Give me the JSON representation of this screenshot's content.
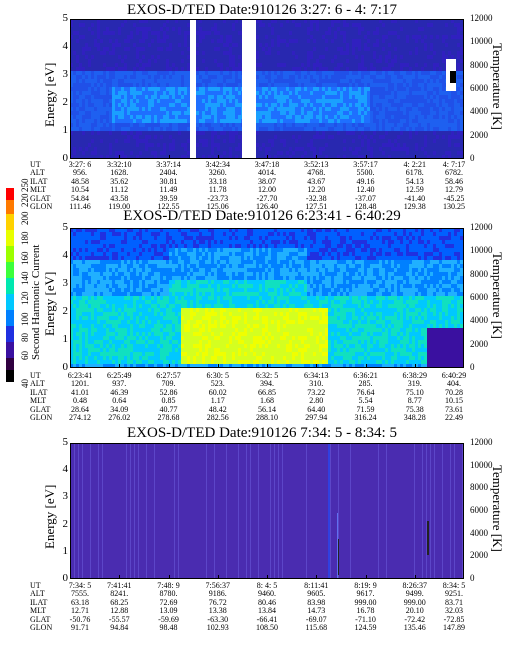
{
  "colorbar": {
    "label": "Second Harmonic Current",
    "ticks": [
      "40",
      "60",
      "80",
      "100",
      "120",
      "140",
      "160",
      "180",
      "200",
      "220",
      "250"
    ]
  },
  "panels": [
    {
      "title": "EXOS-D/TED   Date:910126  3:27: 6 - 4: 7:17",
      "ylabel": "Energy [eV]",
      "tlabel": "Temperature [K]",
      "yticks": [
        "0",
        "1",
        "2",
        "3",
        "4",
        "5"
      ],
      "tticks": [
        "0",
        "2000",
        "4000",
        "6000",
        "8000",
        "10000",
        "12000"
      ],
      "rows": [
        {
          "label": "UT",
          "values": [
            "3:27: 6",
            "3:32:10",
            "3:37:14",
            "3:42:34",
            "3:47:18",
            "3:52:13",
            "3:57:17",
            "4: 2:21",
            "4: 7:17"
          ]
        },
        {
          "label": "ALT",
          "values": [
            "956.",
            "1628.",
            "2404.",
            "3260.",
            "4014.",
            "4768.",
            "5500.",
            "6178.",
            "6782."
          ]
        },
        {
          "label": "ILAT",
          "values": [
            "48.58",
            "35.62",
            "30.81",
            "33.18",
            "38.07",
            "43.67",
            "49.16",
            "54.13",
            "58.46"
          ]
        },
        {
          "label": "MLT",
          "values": [
            "10.54",
            "11.12",
            "11.49",
            "11.78",
            "12.00",
            "12.20",
            "12.40",
            "12.59",
            "12.79"
          ]
        },
        {
          "label": "GLAT",
          "values": [
            "54.84",
            "43.58",
            "39.59",
            "-23.73",
            "-27.70",
            "-32.38",
            "-37.07",
            "-41.40",
            "-45.25"
          ]
        },
        {
          "label": "GLON",
          "values": [
            "111.46",
            "119.00",
            "122.55",
            "125.06",
            "126.40",
            "127.51",
            "128.48",
            "129.38",
            "130.25"
          ]
        }
      ]
    },
    {
      "title": "EXOS-D/TED   Date:910126  6:23:41 - 6:40:29",
      "ylabel": "Energy [eV]",
      "tlabel": "Temperature [K]",
      "yticks": [
        "0",
        "1",
        "2",
        "3",
        "4",
        "5"
      ],
      "tticks": [
        "0",
        "2000",
        "4000",
        "6000",
        "8000",
        "10000",
        "12000"
      ],
      "rows": [
        {
          "label": "UT",
          "values": [
            "6:23:41",
            "6:25:49",
            "6:27:57",
            "6:30: 5",
            "6:32: 5",
            "6:34:13",
            "6:36:21",
            "6:38:29",
            "6:40:29"
          ]
        },
        {
          "label": "ALT",
          "values": [
            "1201.",
            "937.",
            "709.",
            "523.",
            "394.",
            "310.",
            "285.",
            "319.",
            "404."
          ]
        },
        {
          "label": "ILAT",
          "values": [
            "41.01",
            "46.39",
            "52.86",
            "60.02",
            "66.85",
            "73.22",
            "76.64",
            "75.10",
            "70.28"
          ]
        },
        {
          "label": "MLT",
          "values": [
            "0.48",
            "0.64",
            "0.85",
            "1.17",
            "1.68",
            "2.80",
            "5.54",
            "8.77",
            "10.15"
          ]
        },
        {
          "label": "GLAT",
          "values": [
            "28.64",
            "34.09",
            "40.77",
            "48.42",
            "56.14",
            "64.40",
            "71.59",
            "75.38",
            "73.61"
          ]
        },
        {
          "label": "GLON",
          "values": [
            "274.12",
            "276.02",
            "278.68",
            "282.56",
            "288.10",
            "297.94",
            "316.24",
            "348.28",
            "22.49"
          ]
        }
      ]
    },
    {
      "title": "EXOS-D/TED   Date:910126  7:34: 5 - 8:34: 5",
      "ylabel": "Energy [eV]",
      "tlabel": "Temperature [K]",
      "yticks": [
        "0",
        "1",
        "2",
        "3",
        "4",
        "5"
      ],
      "tticks": [
        "0",
        "2000",
        "4000",
        "6000",
        "8000",
        "10000",
        "12000"
      ],
      "rows": [
        {
          "label": "UT",
          "values": [
            "7:34: 5",
            "7:41:41",
            "7:48: 9",
            "7:56:37",
            "8: 4: 5",
            "8:11:41",
            "8:19: 9",
            "8:26:37",
            "8:34: 5"
          ]
        },
        {
          "label": "ALT",
          "values": [
            "7555.",
            "8241.",
            "8780.",
            "9186.",
            "9460.",
            "9605.",
            "9617.",
            "9499.",
            "9251."
          ]
        },
        {
          "label": "ILAT",
          "values": [
            "63.18",
            "68.25",
            "72.69",
            "76.72",
            "80.46",
            "83.98",
            "999.00",
            "999.00",
            "83.71"
          ]
        },
        {
          "label": "MLT",
          "values": [
            "12.71",
            "12.88",
            "13.09",
            "13.38",
            "13.84",
            "14.73",
            "16.78",
            "20.10",
            "32.03"
          ]
        },
        {
          "label": "GLAT",
          "values": [
            "-50.76",
            "-55.57",
            "-59.69",
            "-63.30",
            "-66.41",
            "-69.07",
            "-71.10",
            "-72.42",
            "-72.85"
          ]
        },
        {
          "label": "GLON",
          "values": [
            "91.71",
            "94.84",
            "98.48",
            "102.93",
            "108.50",
            "115.68",
            "124.59",
            "135.46",
            "147.89"
          ]
        }
      ]
    }
  ],
  "chart_data": [
    {
      "type": "heatmap",
      "title": "EXOS-D/TED   Date:910126  3:27: 6 - 4: 7:17",
      "ylabel": "Energy [eV]",
      "y2label": "Temperature [K]",
      "ylim": [
        0,
        5
      ],
      "y2lim": [
        0,
        12000
      ],
      "x": [
        "3:27: 6",
        "3:32:10",
        "3:37:14",
        "3:42:34",
        "3:47:18",
        "3:52:13",
        "3:57:17",
        "4: 2:21",
        "4: 7:17"
      ]
    },
    {
      "type": "heatmap",
      "title": "EXOS-D/TED   Date:910126  6:23:41 - 6:40:29",
      "ylabel": "Energy [eV]",
      "y2label": "Temperature [K]",
      "ylim": [
        0,
        5
      ],
      "y2lim": [
        0,
        12000
      ],
      "x": [
        "6:23:41",
        "6:25:49",
        "6:27:57",
        "6:30: 5",
        "6:32: 5",
        "6:34:13",
        "6:36:21",
        "6:38:29",
        "6:40:29"
      ]
    },
    {
      "type": "heatmap",
      "title": "EXOS-D/TED   Date:910126  7:34: 5 - 8:34: 5",
      "ylabel": "Energy [eV]",
      "y2label": "Temperature [K]",
      "ylim": [
        0,
        5
      ],
      "y2lim": [
        0,
        12000
      ],
      "x": [
        "7:34: 5",
        "7:41:41",
        "7:48: 9",
        "7:56:37",
        "8: 4: 5",
        "8:11:41",
        "8:19: 9",
        "8:26:37",
        "8:34: 5"
      ]
    }
  ]
}
